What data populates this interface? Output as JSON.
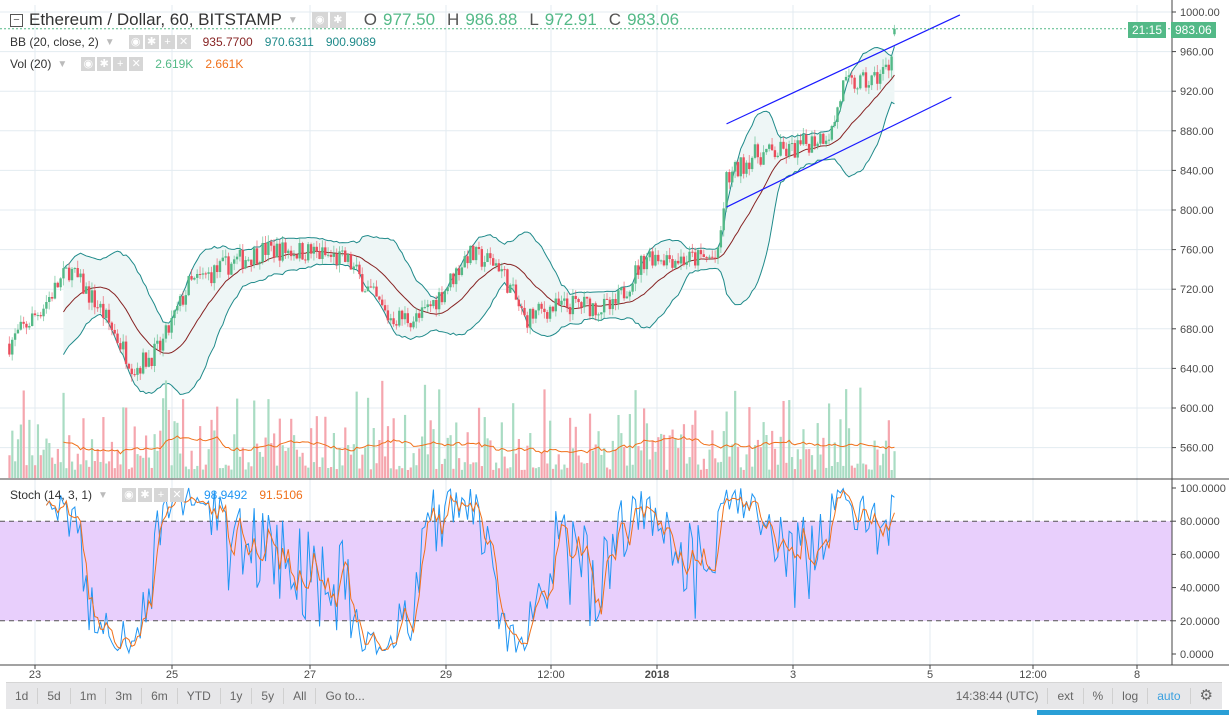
{
  "header": {
    "symbol_title": "Ethereum / Dollar, 60, BITSTAMP",
    "ohlc": {
      "o_label": "O",
      "o": "977.50",
      "h_label": "H",
      "h": "986.88",
      "l_label": "L",
      "l": "972.91",
      "c_label": "C",
      "c": "983.06"
    }
  },
  "indicators": {
    "bb": {
      "label": "BB (20, close, 2)",
      "basis": "935.7700",
      "upper": "970.6311",
      "lower": "900.9089"
    },
    "vol": {
      "label": "Vol (20)",
      "value": "2.619K",
      "ma": "2.661K"
    },
    "stoch": {
      "label": "Stoch (14, 3, 1)",
      "k": "98.9492",
      "d": "91.5106"
    }
  },
  "price_axis": {
    "last_price": "983.06",
    "countdown": "21:15"
  },
  "colors": {
    "up": "#53b987",
    "down": "#eb4d5c",
    "bb_band": "#1f8a8a",
    "bb_basis": "#872323",
    "bb_fill": "#eef6f6",
    "stoch_k": "#2196f3",
    "stoch_d": "#f0701a",
    "stoch_zone": "#e8cffc",
    "trendline": "#1a1aff"
  },
  "toolbar": {
    "ranges": [
      "1d",
      "5d",
      "1m",
      "3m",
      "6m",
      "YTD",
      "1y",
      "5y",
      "All"
    ],
    "goto": "Go to...",
    "clock": "14:38:44 (UTC)",
    "ext": "ext",
    "percent": "%",
    "log": "log",
    "auto": "auto"
  },
  "chart_data": {
    "type": "candlestick",
    "interval": "60",
    "y_ticks": [
      "1000.00",
      "960.00",
      "920.00",
      "880.00",
      "840.00",
      "800.00",
      "760.00",
      "720.00",
      "680.00",
      "640.00",
      "600.00",
      "560.00"
    ],
    "ylim": [
      548,
      1012
    ],
    "stoch_ticks": [
      "100.0000",
      "80.0000",
      "60.0000",
      "40.0000",
      "20.0000",
      "0.0000"
    ],
    "stoch_bands": [
      20,
      80
    ],
    "x_ticks": [
      "23",
      "25",
      "27",
      "29",
      "12:00",
      "2018",
      "3",
      "5",
      "12:00",
      "8"
    ],
    "close_anchors": [
      [
        "2017-12-22 15:00",
        665
      ],
      [
        "2017-12-23 02:00",
        700
      ],
      [
        "2017-12-23 12:00",
        740
      ],
      [
        "2017-12-23 23:00",
        700
      ],
      [
        "2017-12-24 11:00",
        640
      ],
      [
        "2017-12-24 20:00",
        660
      ],
      [
        "2017-12-25 06:00",
        724
      ],
      [
        "2017-12-25 20:00",
        745
      ],
      [
        "2017-12-26 09:00",
        760
      ],
      [
        "2017-12-27 00:00",
        758
      ],
      [
        "2017-12-27 14:00",
        748
      ],
      [
        "2017-12-28 04:00",
        692
      ],
      [
        "2017-12-28 15:00",
        690
      ],
      [
        "2017-12-29 00:00",
        720
      ],
      [
        "2017-12-29 08:00",
        755
      ],
      [
        "2017-12-29 19:00",
        745
      ],
      [
        "2017-12-30 04:00",
        690
      ],
      [
        "2017-12-30 12:00",
        700
      ],
      [
        "2017-12-30 23:00",
        705
      ],
      [
        "2017-12-31 11:00",
        700
      ],
      [
        "2017-12-31 23:00",
        755
      ],
      [
        "2018-01-01 12:00",
        750
      ],
      [
        "2018-01-02 00:00",
        752
      ],
      [
        "2018-01-02 03:00",
        830
      ],
      [
        "2018-01-02 12:00",
        855
      ],
      [
        "2018-01-03 02:00",
        860
      ],
      [
        "2018-01-03 16:00",
        880
      ],
      [
        "2018-01-03 20:00",
        925
      ],
      [
        "2018-01-04 06:00",
        930
      ],
      [
        "2018-01-04 12:00",
        945
      ],
      [
        "2018-01-04 14:00",
        983
      ]
    ],
    "trendlines": [
      {
        "from": [
          "2018-01-02 03:00",
          887
        ],
        "to": [
          "2018-01-05 13:00",
          997
        ]
      },
      {
        "from": [
          "2018-01-02 03:00",
          803
        ],
        "to": [
          "2018-01-05 10:00",
          914
        ]
      }
    ]
  }
}
